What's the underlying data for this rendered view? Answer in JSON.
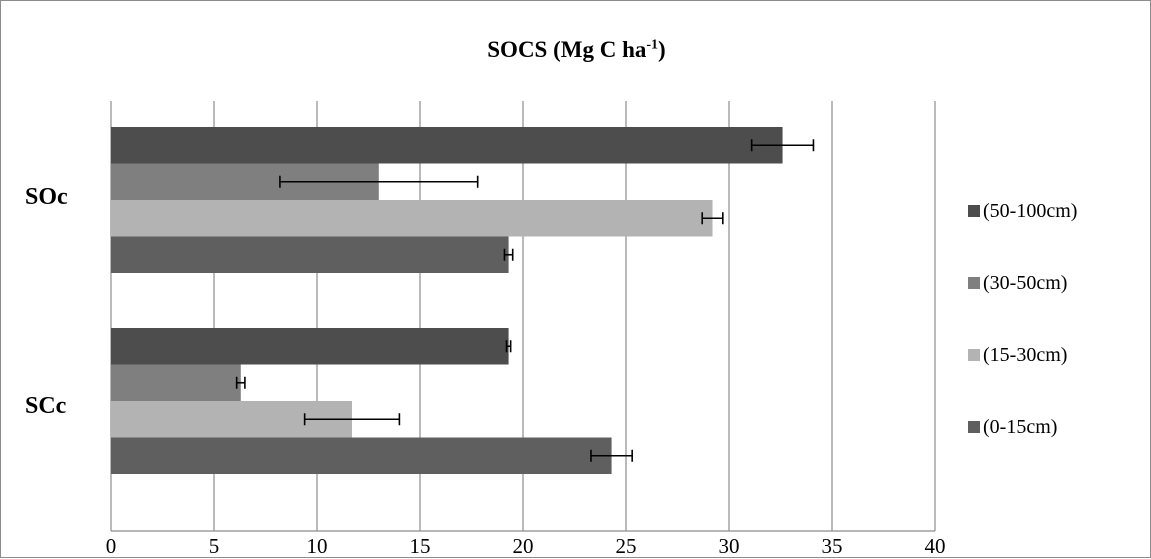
{
  "chart_data": {
    "type": "bar",
    "orientation": "horizontal",
    "title_main": "SOCS (Mg C ha",
    "title_sup": "-1",
    "title_tail": ")",
    "categories": [
      "SOc",
      "SCc"
    ],
    "series": [
      {
        "name": "(50-100cm)",
        "color": "#4d4d4d",
        "values": [
          32.6,
          19.3
        ],
        "errors": [
          1.5,
          0.1
        ]
      },
      {
        "name": "(30-50cm)",
        "color": "#7f7f7f",
        "values": [
          13.0,
          6.3
        ],
        "errors": [
          4.8,
          0.2
        ]
      },
      {
        "name": "(15-30cm)",
        "color": "#b3b3b3",
        "values": [
          29.2,
          11.7
        ],
        "errors": [
          0.5,
          2.3
        ]
      },
      {
        "name": "(0-15cm)",
        "color": "#5f5f5f",
        "values": [
          19.3,
          24.3
        ],
        "errors": [
          0.2,
          1.0
        ]
      }
    ],
    "legend_order": [
      "(50-100cm)",
      "(30-50cm)",
      "(15-30cm)",
      "(0-15cm)"
    ],
    "xlim": [
      0,
      40
    ],
    "xticks": [
      0,
      5,
      10,
      15,
      20,
      25,
      30,
      35,
      40
    ],
    "xlabel": "",
    "ylabel": "",
    "grid": "vertical",
    "legend_position": "right"
  }
}
